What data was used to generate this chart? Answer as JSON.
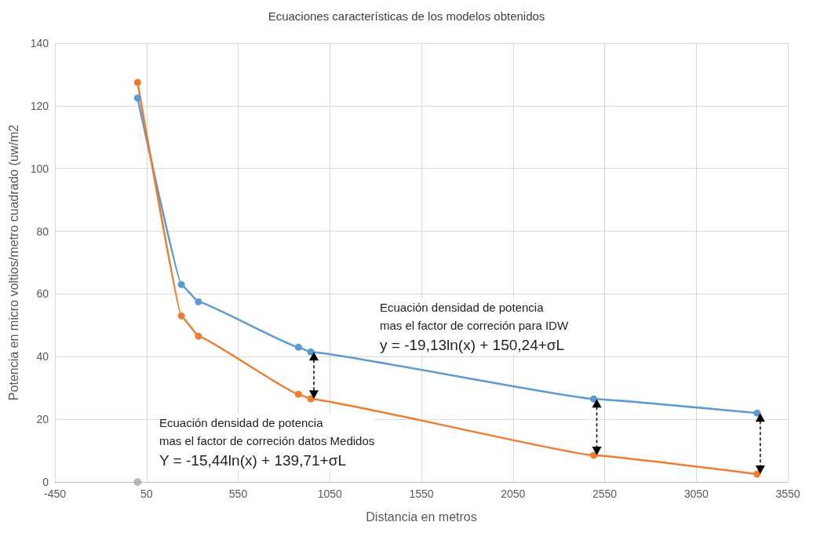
{
  "chart_data": {
    "type": "line",
    "title": "Ecuaciones características de los modelos obtenidos",
    "xlabel": "Distancia en metros",
    "ylabel": "Potencia en micro voltios/metro cuadrado (uw/m2",
    "series": [
      {
        "color": "#5b9bd5",
        "x": [
          1,
          240,
          333,
          879,
          946,
          2490,
          3382
        ],
        "values": [
          122.5,
          63,
          57.5,
          43,
          41.5,
          26.5,
          22
        ]
      },
      {
        "color": "#ed7d31",
        "x": [
          1,
          240,
          333,
          879,
          946,
          2490,
          3382
        ],
        "values": [
          127.5,
          53,
          46.5,
          28,
          26.5,
          8.5,
          2.5
        ]
      },
      {
        "type": "scatter",
        "color": "#a5a5a5",
        "x": [
          1
        ],
        "values": [
          0
        ]
      }
    ],
    "annotations": [
      "Ecuación densidad de potencia\nmas el factor de correción para IDW\ny = -19,13ln(x) + 150,24+σL",
      "Ecuación densidad de potencia\nmas el factor de correción datos Medidos\nY = -15,44ln(x) + 139,71+σL"
    ],
    "xlim": [
      -450,
      3550
    ],
    "xticks": [
      -450,
      50,
      550,
      1050,
      1550,
      2050,
      2550,
      3050,
      3550
    ],
    "ylim": [
      0,
      140
    ],
    "yticks": [
      0,
      20,
      40,
      60,
      80,
      100,
      120,
      140
    ],
    "grid": true,
    "marker": "circle",
    "line_style": "solid"
  }
}
